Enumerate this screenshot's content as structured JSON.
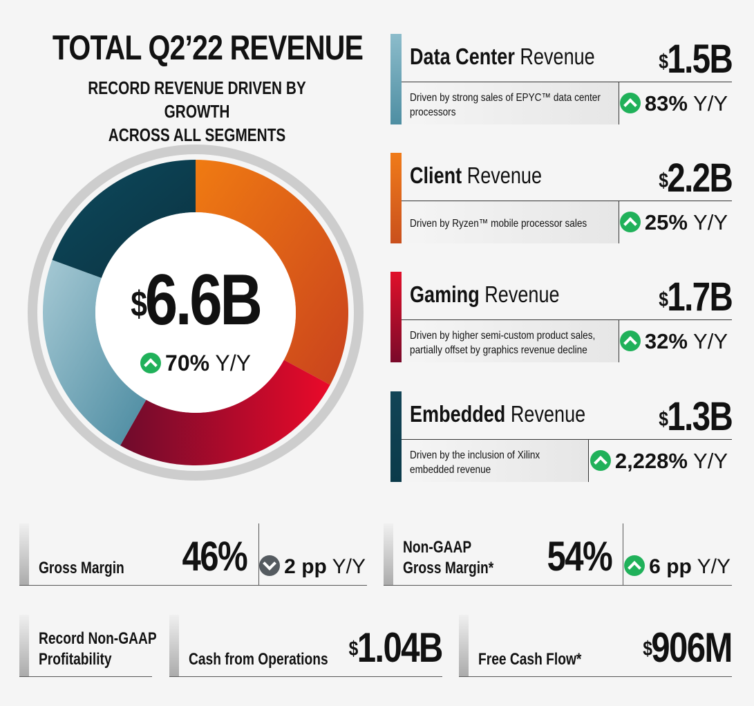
{
  "header": {
    "title": "TOTAL Q2’22 REVENUE",
    "subtitle_line1": "RECORD REVENUE DRIVEN BY GROWTH",
    "subtitle_line2": "ACROSS ALL SEGMENTS"
  },
  "total": {
    "currency": "$",
    "value": "6.6B",
    "growth": "70%",
    "growth_unit": "Y/Y"
  },
  "chart_data": {
    "type": "pie",
    "title": "",
    "categories": [
      "Client",
      "Gaming",
      "Data Center",
      "Embedded"
    ],
    "values": [
      2.2,
      1.7,
      1.5,
      1.3
    ],
    "unit": "$B",
    "total": 6.6
  },
  "segments": [
    {
      "name_bold": "Data Center",
      "name_rest": " Revenue",
      "currency": "$",
      "value": "1.5B",
      "description": "Driven by strong sales of EPYC™ data center processors",
      "growth": "83%",
      "growth_unit": "Y/Y",
      "color_top": "#7fb0c0",
      "color_bottom": "#4f8fa3"
    },
    {
      "name_bold": "Client",
      "name_rest": " Revenue",
      "currency": "$",
      "value": "2.2B",
      "description": "Driven by Ryzen™ mobile processor sales",
      "growth": "25%",
      "growth_unit": "Y/Y",
      "color_top": "#f07b1a",
      "color_bottom": "#c9501d"
    },
    {
      "name_bold": "Gaming",
      "name_rest": " Revenue",
      "currency": "$",
      "value": "1.7B",
      "description": "Driven by higher semi-custom product sales, partially offset by graphics revenue decline",
      "growth": "32%",
      "growth_unit": "Y/Y",
      "color_top": "#e0102a",
      "color_bottom": "#7a0a2a"
    },
    {
      "name_bold": "Embedded",
      "name_rest": " Revenue",
      "currency": "$",
      "value": "1.3B",
      "description": "Driven by the inclusion of Xilinx embedded revenue",
      "growth": "2,228%",
      "growth_unit": "Y/Y",
      "color_top": "#124456",
      "color_bottom": "#0b3a4a"
    }
  ],
  "metrics": {
    "gross_margin": {
      "label": "Gross Margin",
      "value": "46%",
      "change": "2 pp",
      "change_unit": "Y/Y",
      "direction": "down"
    },
    "non_gaap_gross_margin": {
      "label_line1": "Non-GAAP",
      "label_line2": "Gross Margin*",
      "value": "54%",
      "change": "6 pp",
      "change_unit": "Y/Y",
      "direction": "up"
    },
    "profitability": {
      "label_line1": "Record Non-GAAP",
      "label_line2": "Profitability"
    },
    "cash_from_operations": {
      "label": "Cash from Operations",
      "currency": "$",
      "value": "1.04B"
    },
    "free_cash_flow": {
      "label": "Free Cash Flow*",
      "currency": "$",
      "value": "906M"
    }
  },
  "colors": {
    "up": "#20b15a",
    "down": "#555b60",
    "client": "#e8621a",
    "gaming": "#c8102e",
    "data_center": "#6fa3b5",
    "embedded": "#0d4052",
    "ring": "#cccccc"
  }
}
